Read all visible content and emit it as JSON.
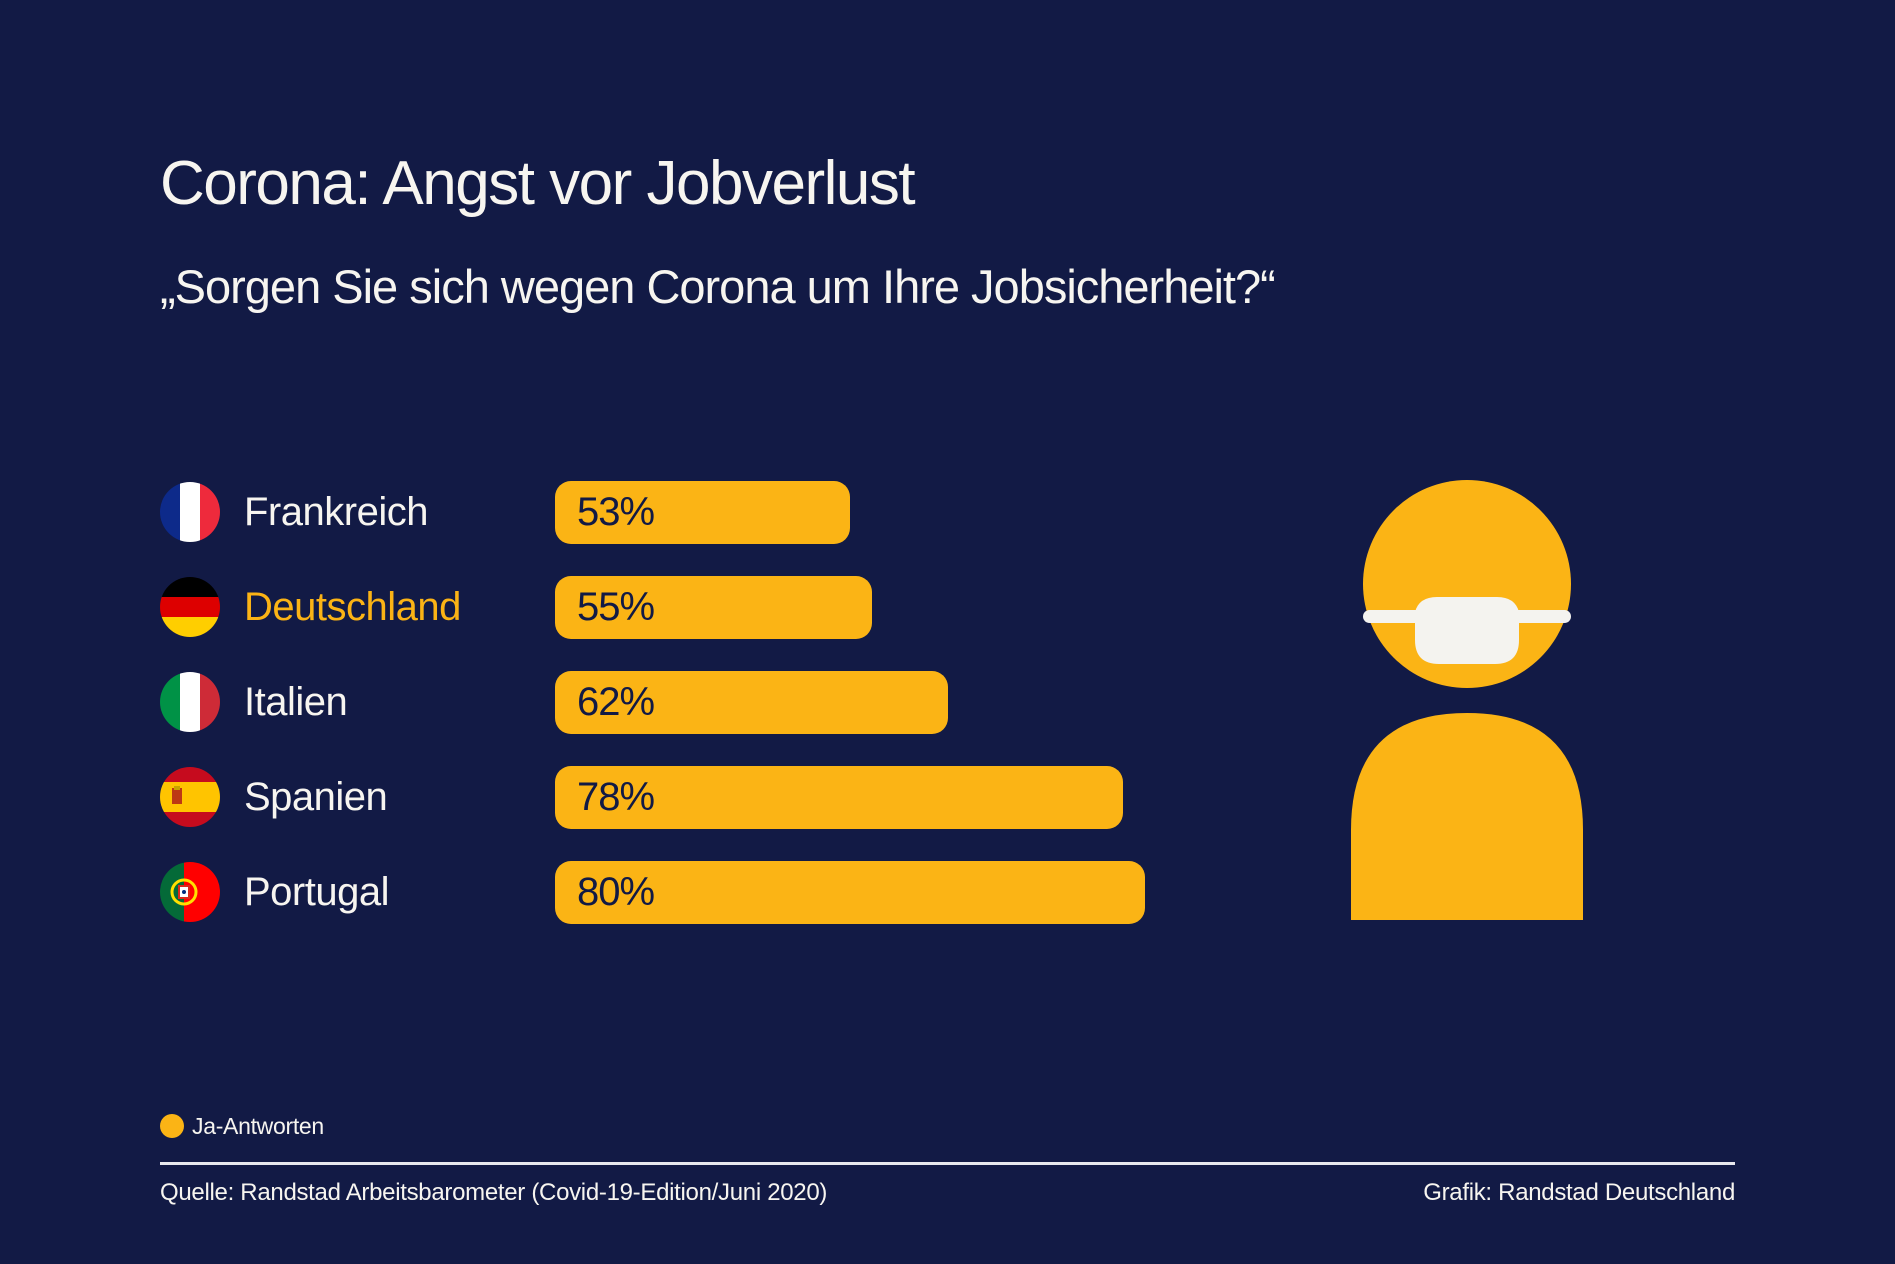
{
  "header": {
    "title": "Corona: Angst vor Jobverlust",
    "subtitle": "„Sorgen Sie sich wegen Corona um Ihre Jobsicherheit?“"
  },
  "colors": {
    "background": "#121a45",
    "bar": "#fbb415",
    "text": "#f7f5f0",
    "highlight": "#fbb315",
    "mask": "#f4f3ef"
  },
  "chart_data": {
    "type": "bar",
    "orientation": "horizontal",
    "title": "Corona: Angst vor Jobverlust",
    "subtitle": "„Sorgen Sie sich wegen Corona um Ihre Jobsicherheit?“",
    "categories": [
      "Frankreich",
      "Deutschland",
      "Italien",
      "Spanien",
      "Portugal"
    ],
    "values": [
      53,
      55,
      62,
      78,
      80
    ],
    "value_labels": [
      "53%",
      "55%",
      "62%",
      "78%",
      "80%"
    ],
    "highlighted_category": "Deutschland",
    "flags": [
      "france-flag-icon",
      "germany-flag-icon",
      "italy-flag-icon",
      "spain-flag-icon",
      "portugal-flag-icon"
    ],
    "unit": "%",
    "xlabel": "",
    "ylabel": "",
    "grid": false,
    "legend": {
      "position": "bottom-left",
      "entries": [
        {
          "name": "Ja-Antworten",
          "color": "#fbb415"
        }
      ]
    }
  },
  "legend": {
    "label": "Ja-Antworten"
  },
  "footer": {
    "source": "Quelle: Randstad Arbeitsbarometer (Covid-19-Edition/Juni 2020)",
    "credit": "Grafik: Randstad Deutschland"
  },
  "illustration": {
    "icon": "person-with-face-mask-icon"
  }
}
